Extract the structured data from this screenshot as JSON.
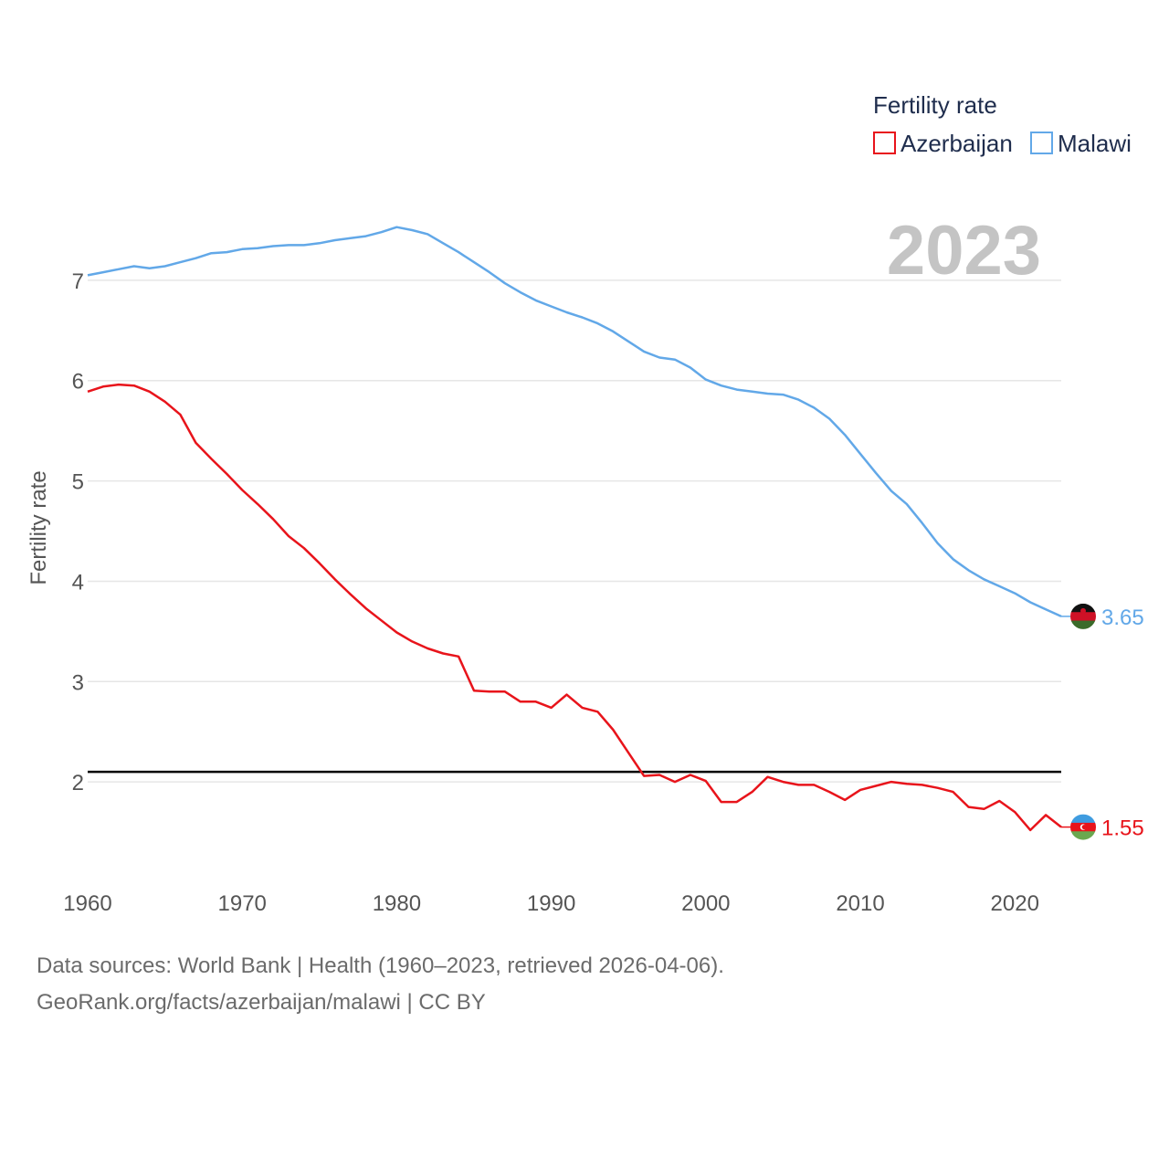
{
  "chart_data": {
    "type": "line",
    "ylabel": "Fertility rate",
    "xlabel": "",
    "year_label": "2023",
    "legend": {
      "title": "Fertility rate",
      "position": "top-right"
    },
    "xlim": [
      1960,
      2023
    ],
    "ylim": [
      1.0,
      7.7
    ],
    "x_ticks": [
      1960,
      1970,
      1980,
      1990,
      2000,
      2010,
      2020
    ],
    "y_ticks": [
      2,
      3,
      4,
      5,
      6,
      7
    ],
    "reference_line": {
      "y": 2.1,
      "color": "#000000"
    },
    "x": [
      1960,
      1961,
      1962,
      1963,
      1964,
      1965,
      1966,
      1967,
      1968,
      1969,
      1970,
      1971,
      1972,
      1973,
      1974,
      1975,
      1976,
      1977,
      1978,
      1979,
      1980,
      1981,
      1982,
      1983,
      1984,
      1985,
      1986,
      1987,
      1988,
      1989,
      1990,
      1991,
      1992,
      1993,
      1994,
      1995,
      1996,
      1997,
      1998,
      1999,
      2000,
      2001,
      2002,
      2003,
      2004,
      2005,
      2006,
      2007,
      2008,
      2009,
      2010,
      2011,
      2012,
      2013,
      2014,
      2015,
      2016,
      2017,
      2018,
      2019,
      2020,
      2021,
      2022,
      2023
    ],
    "series": [
      {
        "name": "Azerbaijan",
        "color": "#e8141b",
        "end_label": "1.55",
        "flag": "azerbaijan-flag",
        "values": [
          5.89,
          5.94,
          5.96,
          5.95,
          5.89,
          5.79,
          5.66,
          5.38,
          5.22,
          5.07,
          4.91,
          4.77,
          4.62,
          4.45,
          4.33,
          4.18,
          4.02,
          3.87,
          3.73,
          3.61,
          3.49,
          3.4,
          3.33,
          3.28,
          3.25,
          2.91,
          2.9,
          2.9,
          2.8,
          2.8,
          2.74,
          2.87,
          2.74,
          2.7,
          2.52,
          2.29,
          2.06,
          2.07,
          2.0,
          2.07,
          2.01,
          1.8,
          1.8,
          1.9,
          2.05,
          2.0,
          1.97,
          1.97,
          1.9,
          1.82,
          1.92,
          1.96,
          2.0,
          1.98,
          1.97,
          1.94,
          1.9,
          1.75,
          1.73,
          1.81,
          1.7,
          1.52,
          1.67,
          1.55
        ]
      },
      {
        "name": "Malawi",
        "color": "#62a8e8",
        "end_label": "3.65",
        "flag": "malawi-flag",
        "values": [
          7.05,
          7.08,
          7.11,
          7.14,
          7.12,
          7.14,
          7.18,
          7.22,
          7.27,
          7.28,
          7.31,
          7.32,
          7.34,
          7.35,
          7.35,
          7.37,
          7.4,
          7.42,
          7.44,
          7.48,
          7.53,
          7.5,
          7.46,
          7.37,
          7.28,
          7.18,
          7.08,
          6.97,
          6.88,
          6.8,
          6.74,
          6.68,
          6.63,
          6.57,
          6.49,
          6.39,
          6.29,
          6.23,
          6.21,
          6.13,
          6.01,
          5.95,
          5.91,
          5.89,
          5.87,
          5.86,
          5.81,
          5.73,
          5.62,
          5.46,
          5.27,
          5.08,
          4.9,
          4.77,
          4.58,
          4.38,
          4.22,
          4.11,
          4.02,
          3.95,
          3.88,
          3.79,
          3.72,
          3.65
        ]
      }
    ]
  },
  "footer": {
    "line1": "Data sources: World Bank | Health (1960–2023, retrieved 2026-04-06).",
    "line2": "GeoRank.org/facts/azerbaijan/malawi | CC BY"
  }
}
